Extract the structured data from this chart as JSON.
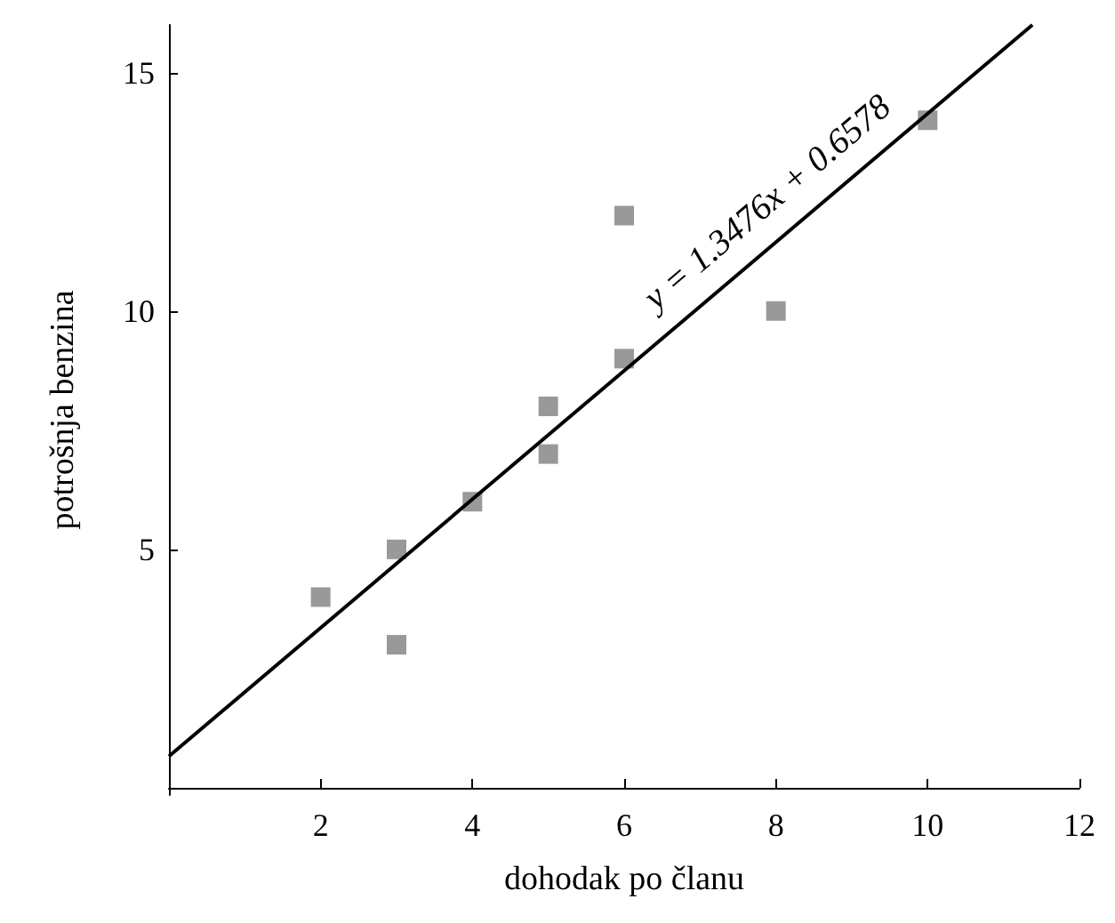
{
  "chart_data": {
    "type": "scatter",
    "xlabel": "dohodak po članu",
    "ylabel": "potrošnja benzina",
    "xlim": [
      0,
      12
    ],
    "ylim": [
      -0.15,
      16
    ],
    "xticks": [
      2,
      4,
      6,
      8,
      10,
      12
    ],
    "yticks": [
      5,
      10,
      15
    ],
    "grid": false,
    "marker": "square",
    "series": [
      {
        "color": "#808080",
        "x": [
          2,
          3,
          3,
          4,
          5,
          5,
          6,
          6,
          8,
          10
        ],
        "values": [
          4,
          5,
          3,
          6,
          8,
          7,
          12,
          9,
          10,
          14
        ]
      },
      {
        "type": "line",
        "color": "#000000",
        "marker": "none",
        "x": [
          0,
          11.38
        ],
        "values": [
          0.66,
          16
        ]
      }
    ],
    "annotations": [
      "y = 1.3476x + 0.6578"
    ]
  }
}
